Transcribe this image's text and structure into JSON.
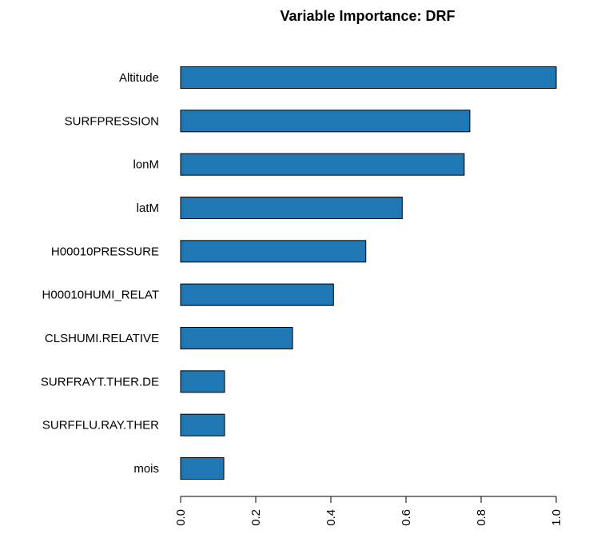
{
  "chart_data": {
    "type": "bar",
    "orientation": "horizontal",
    "title": "Variable Importance: DRF",
    "categories": [
      "Altitude",
      "SURFPRESSION",
      "lonM",
      "latM",
      "H00010PRESSURE",
      "H00010HUMI_RELAT",
      "CLSHUMI.RELATIVE",
      "SURFRAYT.THER.DE",
      "SURFFLU.RAY.THER",
      "mois"
    ],
    "values": [
      1.0,
      0.77,
      0.755,
      0.59,
      0.493,
      0.407,
      0.298,
      0.117,
      0.117,
      0.115
    ],
    "xlabel": "",
    "ylabel": "",
    "xlim": [
      0,
      1
    ],
    "x_ticks": [
      "0.0",
      "0.2",
      "0.4",
      "0.6",
      "0.8",
      "1.0"
    ],
    "x_tick_values": [
      0,
      0.2,
      0.4,
      0.6,
      0.8,
      1.0
    ],
    "grid": false,
    "legend": "none",
    "bar_color": "#1f78b4",
    "bar_border_color": "#000000"
  }
}
